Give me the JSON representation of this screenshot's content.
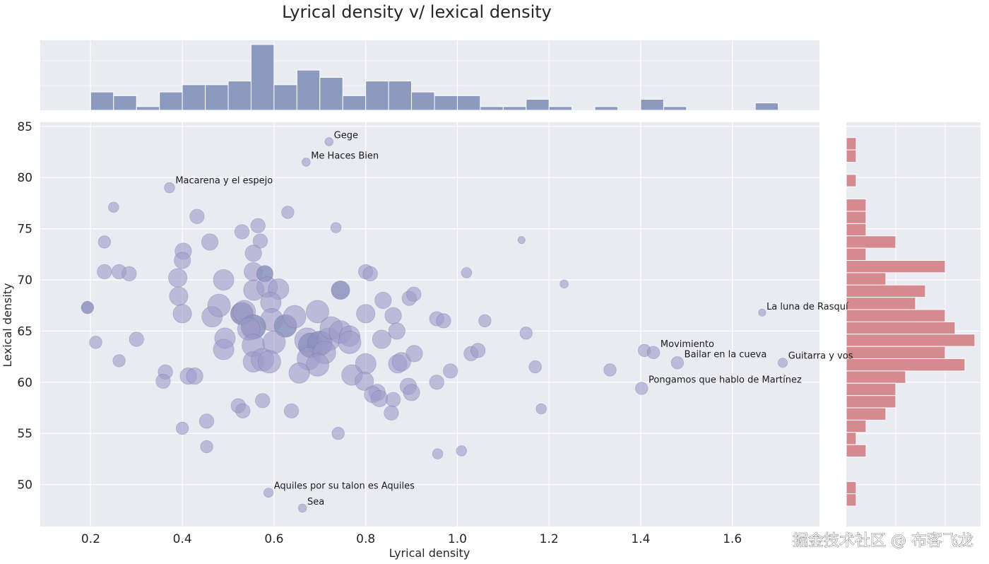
{
  "chart_data": {
    "type": "scatter",
    "title": "Lyrical density v/ lexical density",
    "xlabel": "Lyrical density",
    "ylabel": "Lexical density",
    "xlim": [
      0.09,
      1.79
    ],
    "ylim": [
      45.9,
      85.4
    ],
    "xticks": [
      "0.2",
      "0.4",
      "0.6",
      "0.8",
      "1.0",
      "1.2",
      "1.4",
      "1.6"
    ],
    "xtick_values": [
      0.2,
      0.4,
      0.6,
      0.8,
      1.0,
      1.2,
      1.4,
      1.6
    ],
    "yticks": [
      "50",
      "55",
      "60",
      "65",
      "70",
      "75",
      "80",
      "85"
    ],
    "ytick_values": [
      50,
      55,
      60,
      65,
      70,
      75,
      80,
      85
    ],
    "grid": true,
    "style": "seaborn-darkgrid jointplot",
    "colors": {
      "background": "#eaeaf2",
      "grid": "#ffffff",
      "scatter": "#9e9ac8",
      "scatter_edge": "#6a6a9a",
      "top_hist": "#8d9abf",
      "right_hist": "#d58a8f"
    },
    "points": [
      {
        "x": 0.72,
        "y": 83.5,
        "s": 2,
        "label": "Gege"
      },
      {
        "x": 0.67,
        "y": 81.5,
        "s": 2,
        "label": "Me Haces Bien"
      },
      {
        "x": 0.372,
        "y": 79.0,
        "s": 3,
        "label": "Macarena y el espejo"
      },
      {
        "x": 1.665,
        "y": 66.8,
        "s": 1.5,
        "label": "La luna de Rasquí"
      },
      {
        "x": 1.408,
        "y": 63.1,
        "s": 4,
        "label": ""
      },
      {
        "x": 1.428,
        "y": 62.9,
        "s": 4,
        "label": "Movimiento"
      },
      {
        "x": 1.48,
        "y": 61.9,
        "s": 4,
        "label": "Bailar en la cueva"
      },
      {
        "x": 1.71,
        "y": 61.9,
        "s": 2.5,
        "label": "Guitarra y vos"
      },
      {
        "x": 1.402,
        "y": 59.4,
        "s": 4,
        "label": "Pongamos que hablo de Martínez"
      },
      {
        "x": 0.588,
        "y": 49.2,
        "s": 2.5,
        "label": "Aquiles por su talon es Aquiles"
      },
      {
        "x": 0.662,
        "y": 47.7,
        "s": 2,
        "label": "Sea"
      },
      {
        "x": 0.25,
        "y": 77.1,
        "s": 3
      },
      {
        "x": 0.23,
        "y": 73.7,
        "s": 4
      },
      {
        "x": 0.23,
        "y": 70.8,
        "s": 5
      },
      {
        "x": 0.262,
        "y": 70.8,
        "s": 5
      },
      {
        "x": 0.284,
        "y": 70.6,
        "s": 5
      },
      {
        "x": 0.193,
        "y": 67.3,
        "s": 4,
        "dark": true
      },
      {
        "x": 0.211,
        "y": 63.9,
        "s": 4
      },
      {
        "x": 0.3,
        "y": 64.2,
        "s": 5
      },
      {
        "x": 0.262,
        "y": 62.1,
        "s": 4
      },
      {
        "x": 0.363,
        "y": 61.0,
        "s": 5
      },
      {
        "x": 0.358,
        "y": 60.1,
        "s": 5
      },
      {
        "x": 0.413,
        "y": 60.6,
        "s": 6
      },
      {
        "x": 0.427,
        "y": 60.6,
        "s": 6
      },
      {
        "x": 0.4,
        "y": 55.5,
        "s": 4
      },
      {
        "x": 0.453,
        "y": 56.2,
        "s": 5
      },
      {
        "x": 0.453,
        "y": 53.7,
        "s": 4
      },
      {
        "x": 0.432,
        "y": 76.2,
        "s": 5
      },
      {
        "x": 0.402,
        "y": 72.8,
        "s": 6
      },
      {
        "x": 0.4,
        "y": 71.9,
        "s": 6
      },
      {
        "x": 0.46,
        "y": 73.7,
        "s": 6
      },
      {
        "x": 0.39,
        "y": 70.2,
        "s": 7
      },
      {
        "x": 0.392,
        "y": 68.4,
        "s": 7
      },
      {
        "x": 0.4,
        "y": 66.7,
        "s": 7
      },
      {
        "x": 0.49,
        "y": 70.0,
        "s": 8
      },
      {
        "x": 0.465,
        "y": 66.4,
        "s": 8
      },
      {
        "x": 0.48,
        "y": 67.5,
        "s": 9
      },
      {
        "x": 0.493,
        "y": 64.3,
        "s": 8
      },
      {
        "x": 0.49,
        "y": 63.2,
        "s": 8
      },
      {
        "x": 0.53,
        "y": 74.7,
        "s": 5
      },
      {
        "x": 0.565,
        "y": 75.3,
        "s": 5
      },
      {
        "x": 0.57,
        "y": 73.8,
        "s": 5
      },
      {
        "x": 0.555,
        "y": 72.6,
        "s": 6
      },
      {
        "x": 0.555,
        "y": 70.8,
        "s": 7
      },
      {
        "x": 0.58,
        "y": 70.6,
        "s": 6,
        "dark": true
      },
      {
        "x": 0.556,
        "y": 69.0,
        "s": 8
      },
      {
        "x": 0.585,
        "y": 69.3,
        "s": 8
      },
      {
        "x": 0.61,
        "y": 69.1,
        "s": 8
      },
      {
        "x": 0.593,
        "y": 67.8,
        "s": 8
      },
      {
        "x": 0.53,
        "y": 66.7,
        "s": 9,
        "dark": true
      },
      {
        "x": 0.535,
        "y": 66.9,
        "s": 9
      },
      {
        "x": 0.595,
        "y": 66.1,
        "s": 9
      },
      {
        "x": 0.555,
        "y": 65.4,
        "s": 10,
        "dark": true
      },
      {
        "x": 0.545,
        "y": 65.2,
        "s": 9
      },
      {
        "x": 0.625,
        "y": 65.5,
        "s": 9,
        "dark": true
      },
      {
        "x": 0.645,
        "y": 66.4,
        "s": 9
      },
      {
        "x": 0.555,
        "y": 63.6,
        "s": 9
      },
      {
        "x": 0.6,
        "y": 63.9,
        "s": 9
      },
      {
        "x": 0.555,
        "y": 62.0,
        "s": 8
      },
      {
        "x": 0.575,
        "y": 62.2,
        "s": 9
      },
      {
        "x": 0.59,
        "y": 62.0,
        "s": 9
      },
      {
        "x": 0.63,
        "y": 76.6,
        "s": 4
      },
      {
        "x": 0.735,
        "y": 75.1,
        "s": 3
      },
      {
        "x": 0.695,
        "y": 66.9,
        "s": 9
      },
      {
        "x": 0.745,
        "y": 69.0,
        "s": 7,
        "dark": true
      },
      {
        "x": 0.672,
        "y": 64.1,
        "s": 10
      },
      {
        "x": 0.68,
        "y": 63.6,
        "s": 10,
        "dark": true
      },
      {
        "x": 0.7,
        "y": 63.8,
        "s": 10,
        "dark": true
      },
      {
        "x": 0.72,
        "y": 64.2,
        "s": 9
      },
      {
        "x": 0.725,
        "y": 65.3,
        "s": 9
      },
      {
        "x": 0.745,
        "y": 64.9,
        "s": 9
      },
      {
        "x": 0.765,
        "y": 64.5,
        "s": 8
      },
      {
        "x": 0.765,
        "y": 63.9,
        "s": 9
      },
      {
        "x": 0.675,
        "y": 62.3,
        "s": 9
      },
      {
        "x": 0.71,
        "y": 62.9,
        "s": 9
      },
      {
        "x": 0.695,
        "y": 61.7,
        "s": 9
      },
      {
        "x": 0.655,
        "y": 60.9,
        "s": 8
      },
      {
        "x": 0.74,
        "y": 55.0,
        "s": 4
      },
      {
        "x": 0.638,
        "y": 57.2,
        "s": 5
      },
      {
        "x": 0.575,
        "y": 58.2,
        "s": 5
      },
      {
        "x": 0.522,
        "y": 57.7,
        "s": 5
      },
      {
        "x": 0.532,
        "y": 57.2,
        "s": 5
      },
      {
        "x": 0.8,
        "y": 70.8,
        "s": 5
      },
      {
        "x": 0.81,
        "y": 70.6,
        "s": 5
      },
      {
        "x": 0.8,
        "y": 66.7,
        "s": 7
      },
      {
        "x": 0.838,
        "y": 68.0,
        "s": 6
      },
      {
        "x": 0.895,
        "y": 68.2,
        "s": 5
      },
      {
        "x": 0.905,
        "y": 68.6,
        "s": 5
      },
      {
        "x": 0.86,
        "y": 66.5,
        "s": 6
      },
      {
        "x": 0.868,
        "y": 65.0,
        "s": 6
      },
      {
        "x": 0.835,
        "y": 64.2,
        "s": 7
      },
      {
        "x": 0.955,
        "y": 66.2,
        "s": 5
      },
      {
        "x": 0.97,
        "y": 66.0,
        "s": 5
      },
      {
        "x": 1.02,
        "y": 70.7,
        "s": 3
      },
      {
        "x": 1.06,
        "y": 66.0,
        "s": 4
      },
      {
        "x": 0.8,
        "y": 61.8,
        "s": 8
      },
      {
        "x": 0.77,
        "y": 60.7,
        "s": 8
      },
      {
        "x": 0.797,
        "y": 60.1,
        "s": 7
      },
      {
        "x": 0.825,
        "y": 59.0,
        "s": 6
      },
      {
        "x": 0.815,
        "y": 58.8,
        "s": 6
      },
      {
        "x": 0.83,
        "y": 58.4,
        "s": 6
      },
      {
        "x": 0.86,
        "y": 58.3,
        "s": 5
      },
      {
        "x": 0.856,
        "y": 57.0,
        "s": 5
      },
      {
        "x": 0.87,
        "y": 61.8,
        "s": 7
      },
      {
        "x": 0.878,
        "y": 62.0,
        "s": 7
      },
      {
        "x": 0.906,
        "y": 62.8,
        "s": 6
      },
      {
        "x": 0.893,
        "y": 59.6,
        "s": 6
      },
      {
        "x": 0.9,
        "y": 59.0,
        "s": 6
      },
      {
        "x": 0.955,
        "y": 60.0,
        "s": 5
      },
      {
        "x": 0.985,
        "y": 61.1,
        "s": 5
      },
      {
        "x": 1.03,
        "y": 62.8,
        "s": 5
      },
      {
        "x": 1.045,
        "y": 63.1,
        "s": 5
      },
      {
        "x": 1.14,
        "y": 73.9,
        "s": 1.5
      },
      {
        "x": 1.233,
        "y": 69.6,
        "s": 2
      },
      {
        "x": 1.15,
        "y": 64.8,
        "s": 4
      },
      {
        "x": 1.17,
        "y": 61.5,
        "s": 4
      },
      {
        "x": 1.333,
        "y": 61.2,
        "s": 4
      },
      {
        "x": 1.183,
        "y": 57.4,
        "s": 3
      },
      {
        "x": 0.957,
        "y": 53.0,
        "s": 3
      },
      {
        "x": 1.009,
        "y": 53.3,
        "s": 3
      }
    ],
    "top_histogram": {
      "axis": "Lyrical density",
      "bin_width": 0.05,
      "bin_starts": [
        0.2,
        0.25,
        0.3,
        0.35,
        0.4,
        0.45,
        0.5,
        0.55,
        0.6,
        0.65,
        0.7,
        0.75,
        0.8,
        0.85,
        0.9,
        0.95,
        1.0,
        1.05,
        1.1,
        1.15,
        1.2,
        1.25,
        1.3,
        1.35,
        1.4,
        1.45,
        1.5,
        1.55,
        1.6,
        1.65
      ],
      "counts": [
        5,
        4,
        1,
        5,
        7,
        7,
        8,
        18,
        7,
        11,
        9,
        4,
        8,
        8,
        5,
        4,
        4,
        1,
        1,
        3,
        1,
        0,
        1,
        0,
        3,
        1,
        0,
        0,
        0,
        2
      ]
    },
    "right_histogram": {
      "axis": "Lexical density",
      "bin_width": 1.2,
      "bin_starts": [
        82.7,
        81.5,
        80.3,
        79.1,
        77.9,
        76.7,
        75.5,
        74.3,
        73.1,
        71.9,
        70.7,
        69.5,
        68.3,
        67.1,
        65.9,
        64.7,
        63.5,
        62.3,
        61.1,
        59.9,
        58.7,
        57.5,
        56.3,
        55.1,
        53.9,
        52.7,
        51.5,
        50.3,
        49.1,
        47.9
      ],
      "counts": [
        1,
        1,
        0,
        1,
        0,
        2,
        2,
        2,
        5,
        2,
        10,
        4,
        8,
        7,
        10,
        11,
        13,
        10,
        12,
        6,
        5,
        5,
        4,
        2,
        1,
        2,
        0,
        0,
        1,
        1
      ]
    }
  },
  "watermark": "掘金技术社区 @ 布客飞龙"
}
